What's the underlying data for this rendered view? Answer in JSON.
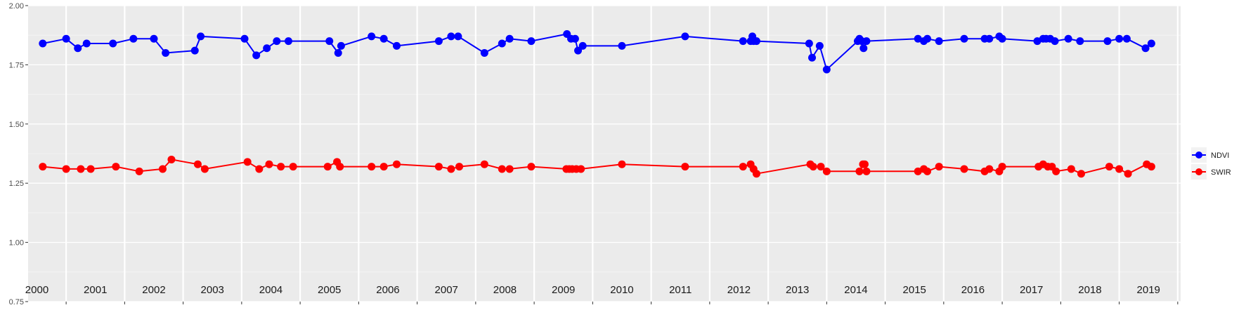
{
  "chart_data": {
    "type": "line",
    "title": "",
    "xlabel": "",
    "ylabel": "",
    "ylim": [
      0.75,
      2.0
    ],
    "y_ticks": [
      "0.75",
      "1.00",
      "1.25",
      "1.50",
      "1.75",
      "2.00"
    ],
    "x_ticks": [
      "2000",
      "2001",
      "2002",
      "2003",
      "2004",
      "2005",
      "2006",
      "2007",
      "2008",
      "2009",
      "2010",
      "2011",
      "2012",
      "2013",
      "2014",
      "2015",
      "2016",
      "2017",
      "2018",
      "2019"
    ],
    "grid": true,
    "legend_position": "right",
    "series": [
      {
        "name": "NDVI",
        "color": "#0000FF",
        "x": [
          2000.1,
          2000.5,
          2000.7,
          2000.85,
          2001.3,
          2001.65,
          2002.0,
          2002.2,
          2002.7,
          2002.8,
          2003.55,
          2003.75,
          2003.93,
          2004.1,
          2004.3,
          2005.0,
          2005.15,
          2005.2,
          2005.72,
          2005.93,
          2006.15,
          2006.87,
          2007.08,
          2007.2,
          2007.65,
          2007.95,
          2008.08,
          2008.45,
          2009.06,
          2009.13,
          2009.2,
          2009.25,
          2009.33,
          2010.0,
          2011.08,
          2012.07,
          2012.2,
          2012.23,
          2012.25,
          2012.3,
          2013.2,
          2013.25,
          2013.38,
          2013.5,
          2014.03,
          2014.06,
          2014.1,
          2014.13,
          2014.18,
          2015.06,
          2015.16,
          2015.22,
          2015.42,
          2015.85,
          2016.2,
          2016.28,
          2016.45,
          2016.5,
          2017.1,
          2017.2,
          2017.25,
          2017.32,
          2017.4,
          2017.63,
          2017.83,
          2018.3,
          2018.5,
          2018.63,
          2018.95,
          2019.05
        ],
        "y": [
          1.84,
          1.86,
          1.82,
          1.84,
          1.84,
          1.86,
          1.86,
          1.8,
          1.81,
          1.87,
          1.86,
          1.79,
          1.82,
          1.85,
          1.85,
          1.85,
          1.8,
          1.83,
          1.87,
          1.86,
          1.83,
          1.85,
          1.87,
          1.87,
          1.8,
          1.84,
          1.86,
          1.85,
          1.88,
          1.86,
          1.86,
          1.81,
          1.83,
          1.83,
          1.87,
          1.85,
          1.85,
          1.87,
          1.85,
          1.85,
          1.84,
          1.78,
          1.83,
          1.73,
          1.85,
          1.86,
          1.85,
          1.82,
          1.85,
          1.86,
          1.85,
          1.86,
          1.85,
          1.86,
          1.86,
          1.86,
          1.87,
          1.86,
          1.85,
          1.86,
          1.86,
          1.86,
          1.85,
          1.86,
          1.85,
          1.85,
          1.86,
          1.86,
          1.82,
          1.84
        ]
      },
      {
        "name": "SWIR",
        "color": "#FF0000",
        "x": [
          2000.1,
          2000.5,
          2000.75,
          2000.92,
          2001.35,
          2001.75,
          2002.15,
          2002.3,
          2002.75,
          2002.87,
          2003.6,
          2003.8,
          2003.97,
          2004.17,
          2004.38,
          2004.97,
          2005.13,
          2005.18,
          2005.72,
          2005.93,
          2006.15,
          2006.87,
          2007.08,
          2007.22,
          2007.65,
          2007.95,
          2008.08,
          2008.45,
          2009.05,
          2009.1,
          2009.15,
          2009.22,
          2009.3,
          2010.0,
          2011.08,
          2012.07,
          2012.2,
          2012.25,
          2012.3,
          2013.22,
          2013.27,
          2013.4,
          2013.5,
          2014.06,
          2014.12,
          2014.15,
          2014.18,
          2015.06,
          2015.16,
          2015.22,
          2015.42,
          2015.85,
          2016.2,
          2016.28,
          2016.45,
          2016.5,
          2017.12,
          2017.2,
          2017.28,
          2017.35,
          2017.42,
          2017.68,
          2017.85,
          2018.33,
          2018.5,
          2018.65,
          2018.97,
          2019.05
        ],
        "y": [
          1.32,
          1.31,
          1.31,
          1.31,
          1.32,
          1.3,
          1.31,
          1.35,
          1.33,
          1.31,
          1.34,
          1.31,
          1.33,
          1.32,
          1.32,
          1.32,
          1.34,
          1.32,
          1.32,
          1.32,
          1.33,
          1.32,
          1.31,
          1.32,
          1.33,
          1.31,
          1.31,
          1.32,
          1.31,
          1.31,
          1.31,
          1.31,
          1.31,
          1.33,
          1.32,
          1.32,
          1.33,
          1.31,
          1.29,
          1.33,
          1.32,
          1.32,
          1.3,
          1.3,
          1.33,
          1.33,
          1.3,
          1.3,
          1.31,
          1.3,
          1.32,
          1.31,
          1.3,
          1.31,
          1.3,
          1.32,
          1.32,
          1.33,
          1.32,
          1.32,
          1.3,
          1.31,
          1.29,
          1.32,
          1.31,
          1.29,
          1.33,
          1.32
        ]
      }
    ]
  }
}
